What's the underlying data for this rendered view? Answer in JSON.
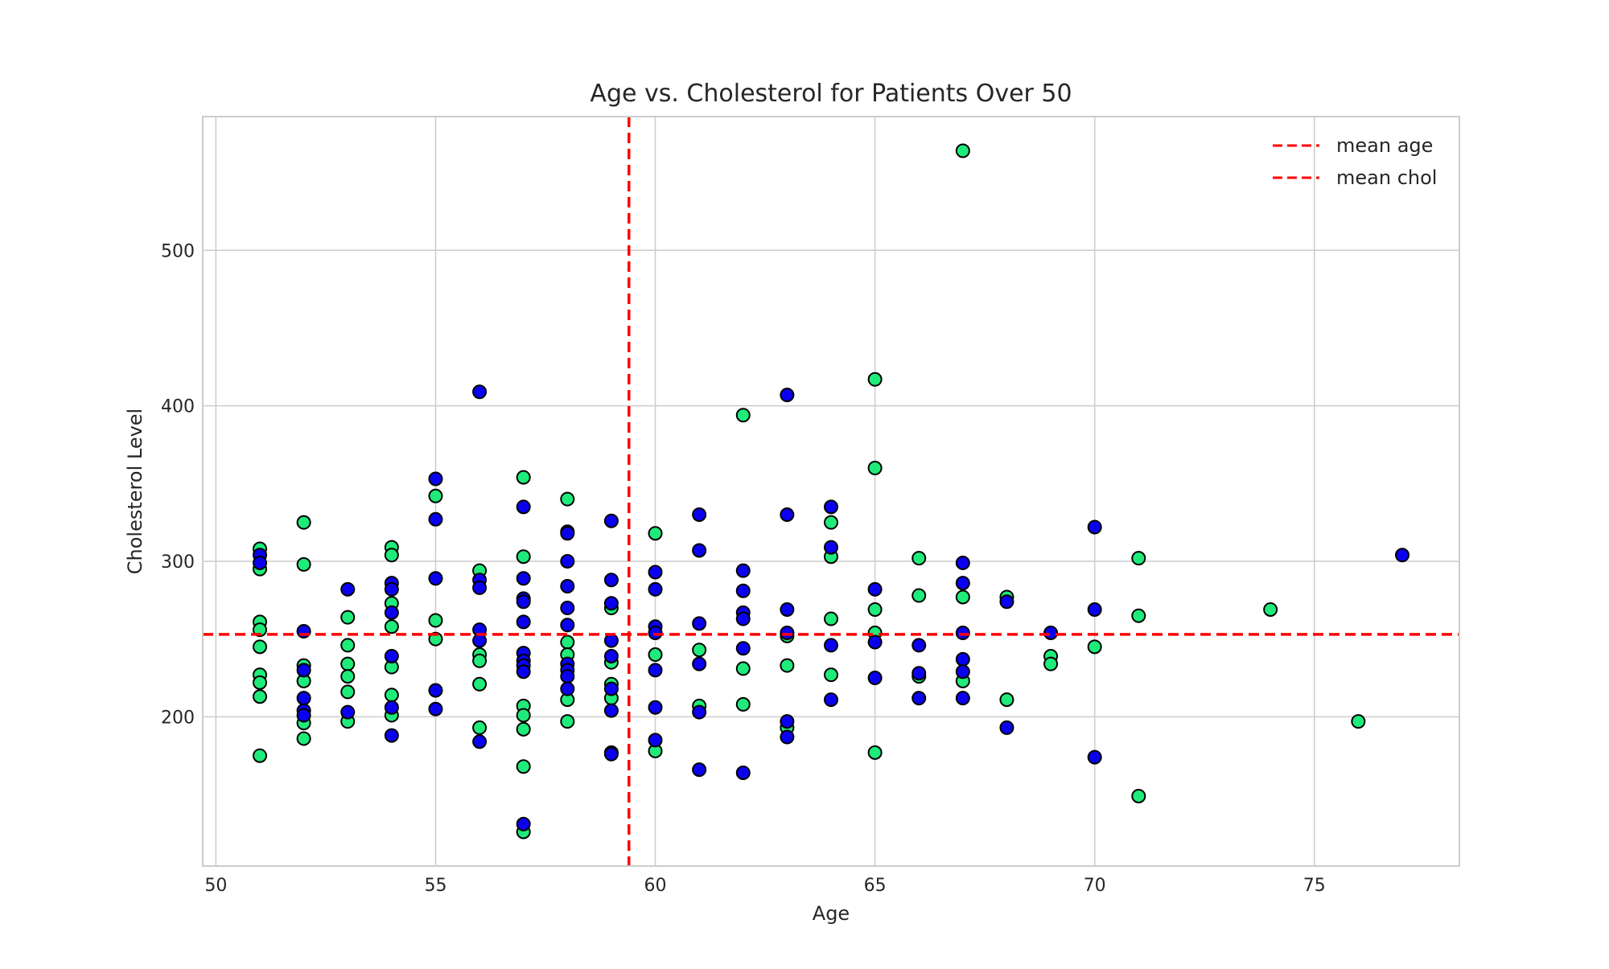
{
  "chart_data": {
    "type": "scatter",
    "title": "Age vs. Cholesterol for Patients Over 50",
    "xlabel": "Age",
    "ylabel": "Cholesterol Level",
    "xlim": [
      49.7,
      78.3
    ],
    "ylim": [
      104,
      586
    ],
    "xticks": [
      50,
      55,
      60,
      65,
      70,
      75
    ],
    "yticks": [
      200,
      300,
      400,
      500
    ],
    "grid": true,
    "legend_position": "top-right",
    "colors": {
      "green": "#1FEB7A",
      "blue": "#0A00F0",
      "edge": "#000000",
      "mean_line": "#FF0000",
      "grid": "#CCCCCC",
      "frame": "#CCCCCC"
    },
    "lines": [
      {
        "name": "mean age",
        "orientation": "vertical",
        "value": 59.4
      },
      {
        "name": "mean chol",
        "orientation": "horizontal",
        "value": 253
      }
    ],
    "series": [
      {
        "group": "green",
        "points": [
          [
            51,
            308
          ],
          [
            51,
            295
          ],
          [
            51,
            261
          ],
          [
            51,
            256
          ],
          [
            51,
            245
          ],
          [
            51,
            227
          ],
          [
            51,
            222
          ],
          [
            51,
            213
          ],
          [
            51,
            175
          ],
          [
            52,
            325
          ],
          [
            52,
            298
          ],
          [
            52,
            233
          ],
          [
            52,
            223
          ],
          [
            52,
            196
          ],
          [
            52,
            186
          ],
          [
            53,
            264
          ],
          [
            53,
            246
          ],
          [
            53,
            234
          ],
          [
            53,
            226
          ],
          [
            53,
            216
          ],
          [
            53,
            197
          ],
          [
            54,
            309
          ],
          [
            54,
            304
          ],
          [
            54,
            273
          ],
          [
            54,
            258
          ],
          [
            54,
            232
          ],
          [
            54,
            214
          ],
          [
            54,
            201
          ],
          [
            55,
            342
          ],
          [
            55,
            262
          ],
          [
            55,
            250
          ],
          [
            56,
            294
          ],
          [
            56,
            240
          ],
          [
            56,
            236
          ],
          [
            56,
            221
          ],
          [
            56,
            193
          ],
          [
            57,
            354
          ],
          [
            57,
            303
          ],
          [
            57,
            207
          ],
          [
            57,
            201
          ],
          [
            57,
            192
          ],
          [
            57,
            168
          ],
          [
            57,
            126
          ],
          [
            58,
            340
          ],
          [
            58,
            248
          ],
          [
            58,
            240
          ],
          [
            58,
            211
          ],
          [
            58,
            197
          ],
          [
            59,
            270
          ],
          [
            59,
            235
          ],
          [
            59,
            221
          ],
          [
            59,
            212
          ],
          [
            59,
            177
          ],
          [
            60,
            318
          ],
          [
            60,
            240
          ],
          [
            60,
            178
          ],
          [
            61,
            243
          ],
          [
            61,
            207
          ],
          [
            62,
            394
          ],
          [
            62,
            231
          ],
          [
            62,
            208
          ],
          [
            63,
            252
          ],
          [
            63,
            233
          ],
          [
            63,
            193
          ],
          [
            64,
            325
          ],
          [
            64,
            303
          ],
          [
            64,
            263
          ],
          [
            64,
            227
          ],
          [
            65,
            417
          ],
          [
            65,
            360
          ],
          [
            65,
            269
          ],
          [
            65,
            254
          ],
          [
            65,
            177
          ],
          [
            66,
            302
          ],
          [
            66,
            278
          ],
          [
            66,
            226
          ],
          [
            67,
            564
          ],
          [
            67,
            277
          ],
          [
            67,
            223
          ],
          [
            68,
            277
          ],
          [
            68,
            211
          ],
          [
            69,
            239
          ],
          [
            69,
            234
          ],
          [
            70,
            245
          ],
          [
            71,
            302
          ],
          [
            71,
            265
          ],
          [
            71,
            149
          ],
          [
            74,
            269
          ],
          [
            76,
            197
          ]
        ]
      },
      {
        "group": "blue",
        "points": [
          [
            51,
            304
          ],
          [
            51,
            299
          ],
          [
            52,
            255
          ],
          [
            52,
            230
          ],
          [
            52,
            212
          ],
          [
            52,
            204
          ],
          [
            52,
            201
          ],
          [
            53,
            282
          ],
          [
            53,
            203
          ],
          [
            54,
            286
          ],
          [
            54,
            282
          ],
          [
            54,
            267
          ],
          [
            54,
            239
          ],
          [
            54,
            206
          ],
          [
            54,
            188
          ],
          [
            55,
            353
          ],
          [
            55,
            327
          ],
          [
            55,
            289
          ],
          [
            55,
            217
          ],
          [
            55,
            205
          ],
          [
            56,
            409
          ],
          [
            56,
            288
          ],
          [
            56,
            283
          ],
          [
            56,
            256
          ],
          [
            56,
            249
          ],
          [
            56,
            184
          ],
          [
            57,
            335
          ],
          [
            57,
            289
          ],
          [
            57,
            276
          ],
          [
            57,
            274
          ],
          [
            57,
            261
          ],
          [
            57,
            241
          ],
          [
            57,
            236
          ],
          [
            57,
            233
          ],
          [
            57,
            229
          ],
          [
            57,
            131
          ],
          [
            58,
            319
          ],
          [
            58,
            318
          ],
          [
            58,
            300
          ],
          [
            58,
            284
          ],
          [
            58,
            270
          ],
          [
            58,
            259
          ],
          [
            58,
            234
          ],
          [
            58,
            230
          ],
          [
            58,
            226
          ],
          [
            58,
            218
          ],
          [
            59,
            326
          ],
          [
            59,
            288
          ],
          [
            59,
            273
          ],
          [
            59,
            249
          ],
          [
            59,
            239
          ],
          [
            59,
            218
          ],
          [
            59,
            204
          ],
          [
            59,
            176
          ],
          [
            60,
            293
          ],
          [
            60,
            282
          ],
          [
            60,
            258
          ],
          [
            60,
            254
          ],
          [
            60,
            230
          ],
          [
            60,
            206
          ],
          [
            60,
            185
          ],
          [
            61,
            330
          ],
          [
            61,
            307
          ],
          [
            61,
            260
          ],
          [
            61,
            234
          ],
          [
            61,
            203
          ],
          [
            61,
            166
          ],
          [
            62,
            294
          ],
          [
            62,
            281
          ],
          [
            62,
            267
          ],
          [
            62,
            263
          ],
          [
            62,
            244
          ],
          [
            62,
            164
          ],
          [
            63,
            407
          ],
          [
            63,
            330
          ],
          [
            63,
            269
          ],
          [
            63,
            254
          ],
          [
            63,
            197
          ],
          [
            63,
            187
          ],
          [
            64,
            335
          ],
          [
            64,
            309
          ],
          [
            64,
            246
          ],
          [
            64,
            211
          ],
          [
            65,
            282
          ],
          [
            65,
            248
          ],
          [
            65,
            225
          ],
          [
            66,
            246
          ],
          [
            66,
            228
          ],
          [
            66,
            212
          ],
          [
            67,
            299
          ],
          [
            67,
            286
          ],
          [
            67,
            254
          ],
          [
            67,
            237
          ],
          [
            67,
            229
          ],
          [
            67,
            212
          ],
          [
            68,
            274
          ],
          [
            68,
            193
          ],
          [
            69,
            254
          ],
          [
            70,
            322
          ],
          [
            70,
            269
          ],
          [
            70,
            174
          ],
          [
            77,
            304
          ]
        ]
      }
    ]
  }
}
